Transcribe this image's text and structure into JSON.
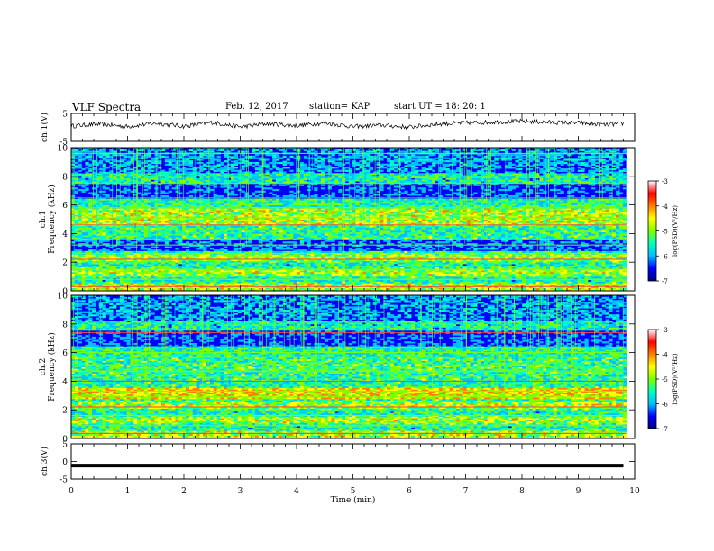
{
  "header": {
    "title": "VLF Spectra",
    "date": "Feb. 12, 2017",
    "station": "station= KAP",
    "start_ut": "start  UT =   18: 20: 1"
  },
  "colorbar": {
    "label": "log(PSD)(V²/Hz)",
    "ticks": [
      "-3",
      "-4",
      "-5",
      "-6",
      "-7"
    ],
    "range": [
      -7,
      -3
    ],
    "colors": [
      "#00007f",
      "#0000ff",
      "#00bfff",
      "#00ffbf",
      "#7fff00",
      "#ffff00",
      "#ff7f00",
      "#ff0000",
      "#ffffff"
    ]
  },
  "chart_data": [
    {
      "type": "line",
      "title": "ch.1(V)",
      "ylabel": "ch.1(V)",
      "ylim": [
        -5,
        5
      ],
      "yticks": [
        "5",
        "-5"
      ],
      "xlim": [
        0,
        10
      ],
      "description_of_series": "noisy voltage trace around 0 to 2 V, rising slightly after 7 min",
      "x": [
        0,
        0.5,
        1,
        1.5,
        2,
        2.5,
        3,
        3.5,
        4,
        4.5,
        5,
        5.5,
        6,
        6.5,
        7,
        7.5,
        8,
        8.5,
        9,
        9.5,
        9.8
      ],
      "values": [
        0.5,
        1.2,
        0.3,
        1.5,
        0.4,
        1.8,
        0.2,
        1.4,
        0.6,
        1.6,
        0.3,
        0.8,
        0.1,
        1.2,
        1.6,
        1.9,
        2.2,
        1.8,
        1.6,
        0.9,
        1.4
      ]
    },
    {
      "type": "heatmap",
      "ylabel_lines": [
        "ch.1",
        "Frequency (kHz)"
      ],
      "ylim": [
        0,
        10
      ],
      "yticks": [
        "0",
        "2",
        "4",
        "6",
        "8",
        "10"
      ],
      "xlim": [
        0,
        10
      ],
      "zlim": [
        -7,
        -3
      ]
    },
    {
      "type": "heatmap",
      "ylabel_lines": [
        "ch.2",
        "Frequency (kHz)"
      ],
      "ylim": [
        0,
        10
      ],
      "yticks": [
        "0",
        "2",
        "4",
        "6",
        "8",
        "10"
      ],
      "xlim": [
        0,
        10
      ],
      "zlim": [
        -7,
        -3
      ]
    },
    {
      "type": "line",
      "ylabel": "ch.3(V)",
      "ylim": [
        -5,
        5
      ],
      "yticks": [
        "5",
        "0",
        "-5"
      ],
      "xlim": [
        0,
        10
      ],
      "x": [
        0,
        9.8
      ],
      "values": [
        -1.2,
        -1.2
      ]
    }
  ],
  "xaxis": {
    "label": "Time (min)",
    "ticks": [
      "0",
      "1",
      "2",
      "3",
      "4",
      "5",
      "6",
      "7",
      "8",
      "9",
      "10"
    ]
  }
}
